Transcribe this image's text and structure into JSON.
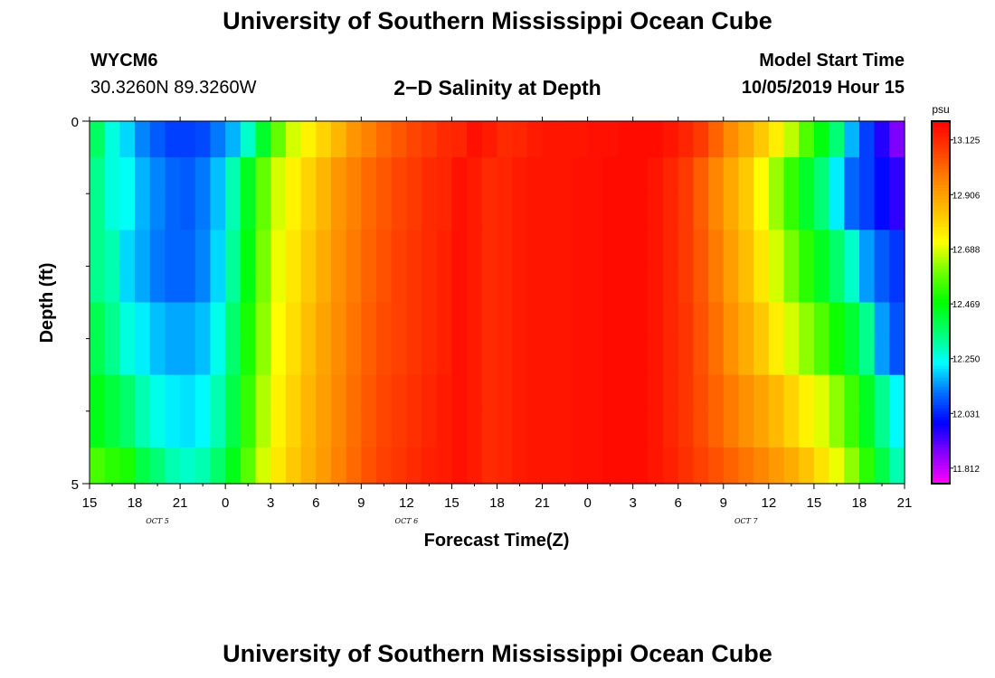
{
  "header": {
    "title": "University of Southern Mississippi Ocean Cube",
    "station_id": "WYCM6",
    "station_coords": "30.3260N 89.3260W",
    "plot_title": "2−D Salinity at Depth",
    "model_start_label": "Model Start Time",
    "model_start_value": "10/05/2019 Hour 15"
  },
  "footer": {
    "title": "University of Southern Mississippi Ocean Cube"
  },
  "chart_data": {
    "type": "heatmap",
    "title": "2−D Salinity at Depth",
    "xlabel": "Forecast Time(Z)",
    "ylabel": "Depth (ft)",
    "x_tick_labels": [
      "15",
      "18",
      "21",
      "0",
      "3",
      "6",
      "9",
      "12",
      "15",
      "18",
      "21",
      "0",
      "3",
      "6",
      "9",
      "12",
      "15",
      "18",
      "21"
    ],
    "x_hours_start": 15,
    "x_hours_step": 3,
    "date_labels": [
      {
        "text": "OCT 5",
        "hour_offset": 4.5
      },
      {
        "text": "OCT 6",
        "hour_offset": 21
      },
      {
        "text": "OCT 7",
        "hour_offset": 43.5
      }
    ],
    "y_tick_labels": [
      "0",
      "5"
    ],
    "ylim": [
      0,
      5
    ],
    "y_minor_ticks": [
      1,
      2,
      3,
      4
    ],
    "colorbar": {
      "unit": "psu",
      "min": 11.75,
      "max": 13.2,
      "tick_labels": [
        "13.125",
        "12.906",
        "12.688",
        "12.469",
        "12.250",
        "12.031",
        "11.812"
      ],
      "colors": [
        "#ff00ff",
        "#8800ff",
        "#0000ff",
        "#0070ff",
        "#00ffff",
        "#00ff70",
        "#00ff00",
        "#70ff00",
        "#ffff00",
        "#ffc000",
        "#ff8800",
        "#ff4000",
        "#ff0000"
      ]
    },
    "depth_layers_ft": [
      0.25,
      0.75,
      1.25,
      1.75,
      2.25,
      2.75,
      3.25,
      3.75,
      4.25,
      4.75
    ],
    "time_hours": [
      0,
      1,
      2,
      3,
      4,
      5,
      6,
      7,
      8,
      9,
      10,
      11,
      12,
      13,
      14,
      15,
      16,
      17,
      18,
      19,
      20,
      21,
      22,
      23,
      24,
      25,
      26,
      27,
      28,
      29,
      30,
      31,
      32,
      33,
      34,
      35,
      36,
      37,
      38,
      39,
      40,
      41,
      42,
      43,
      44,
      45,
      46,
      47,
      48,
      49,
      50,
      51,
      52,
      53,
      54
    ],
    "salinity_psu": [
      [
        12.37,
        12.26,
        12.2,
        12.13,
        12.09,
        12.06,
        12.06,
        12.07,
        12.12,
        12.17,
        12.28,
        12.43,
        12.58,
        12.68,
        12.74,
        12.8,
        12.86,
        12.93,
        12.97,
        13.01,
        13.04,
        13.07,
        13.09,
        13.12,
        13.13,
        13.17,
        13.15,
        13.12,
        13.13,
        13.15,
        13.16,
        13.16,
        13.16,
        13.17,
        13.17,
        13.18,
        13.18,
        13.18,
        13.16,
        13.13,
        13.09,
        13.02,
        12.95,
        12.89,
        12.82,
        12.75,
        12.66,
        12.56,
        12.46,
        12.35,
        12.17,
        12.06,
        11.96,
        11.88,
        11.79
      ],
      [
        12.33,
        12.26,
        12.24,
        12.17,
        12.13,
        12.1,
        12.09,
        12.12,
        12.18,
        12.3,
        12.44,
        12.58,
        12.68,
        12.74,
        12.8,
        12.86,
        12.93,
        12.97,
        13.01,
        13.04,
        13.07,
        13.09,
        13.12,
        13.13,
        13.17,
        13.15,
        13.12,
        13.13,
        13.15,
        13.16,
        13.16,
        13.16,
        13.17,
        13.17,
        13.18,
        13.18,
        13.18,
        13.16,
        13.13,
        13.09,
        13.03,
        12.96,
        12.89,
        12.82,
        12.72,
        12.63,
        12.53,
        12.43,
        12.35,
        12.22,
        12.1,
        12.06,
        12.0,
        11.95,
        11.9
      ],
      [
        12.33,
        12.26,
        12.24,
        12.17,
        12.13,
        12.1,
        12.09,
        12.12,
        12.18,
        12.3,
        12.44,
        12.58,
        12.68,
        12.74,
        12.8,
        12.86,
        12.93,
        12.97,
        13.01,
        13.04,
        13.07,
        13.09,
        13.12,
        13.13,
        13.17,
        13.15,
        13.12,
        13.13,
        13.15,
        13.16,
        13.16,
        13.16,
        13.17,
        13.17,
        13.18,
        13.18,
        13.18,
        13.16,
        13.13,
        13.09,
        13.03,
        12.96,
        12.89,
        12.82,
        12.72,
        12.63,
        12.53,
        12.43,
        12.35,
        12.22,
        12.1,
        12.06,
        12.0,
        11.95,
        11.9
      ],
      [
        12.33,
        12.3,
        12.2,
        12.16,
        12.12,
        12.1,
        12.1,
        12.13,
        12.2,
        12.32,
        12.46,
        12.6,
        12.7,
        12.76,
        12.82,
        12.88,
        12.94,
        12.98,
        13.02,
        13.05,
        13.08,
        13.1,
        13.12,
        13.14,
        13.17,
        13.15,
        13.12,
        13.13,
        13.15,
        13.16,
        13.16,
        13.16,
        13.17,
        13.17,
        13.18,
        13.18,
        13.18,
        13.16,
        13.13,
        13.09,
        13.04,
        12.98,
        12.91,
        12.84,
        12.76,
        12.68,
        12.6,
        12.52,
        12.44,
        12.36,
        12.28,
        12.15,
        12.09,
        12.05,
        12.01
      ],
      [
        12.33,
        12.3,
        12.2,
        12.16,
        12.12,
        12.1,
        12.1,
        12.13,
        12.2,
        12.32,
        12.46,
        12.6,
        12.7,
        12.76,
        12.82,
        12.88,
        12.94,
        12.98,
        13.02,
        13.05,
        13.08,
        13.1,
        13.12,
        13.14,
        13.17,
        13.15,
        13.12,
        13.13,
        13.15,
        13.16,
        13.16,
        13.16,
        13.17,
        13.17,
        13.18,
        13.18,
        13.18,
        13.16,
        13.13,
        13.09,
        13.04,
        12.98,
        12.91,
        12.84,
        12.76,
        12.68,
        12.6,
        12.52,
        12.44,
        12.36,
        12.28,
        12.15,
        12.09,
        12.05,
        12.01
      ],
      [
        12.39,
        12.33,
        12.26,
        12.22,
        12.18,
        12.16,
        12.16,
        12.18,
        12.25,
        12.36,
        12.5,
        12.62,
        12.72,
        12.78,
        12.84,
        12.9,
        12.95,
        12.99,
        13.03,
        13.06,
        13.08,
        13.1,
        13.12,
        13.14,
        13.17,
        13.15,
        13.12,
        13.13,
        13.15,
        13.16,
        13.16,
        13.16,
        13.17,
        13.17,
        13.18,
        13.18,
        13.18,
        13.16,
        13.13,
        13.1,
        13.05,
        13.0,
        12.94,
        12.88,
        12.82,
        12.75,
        12.68,
        12.62,
        12.56,
        12.49,
        12.42,
        12.33,
        12.15,
        12.08,
        12.04
      ],
      [
        12.39,
        12.33,
        12.26,
        12.22,
        12.18,
        12.16,
        12.16,
        12.18,
        12.25,
        12.36,
        12.5,
        12.62,
        12.72,
        12.78,
        12.84,
        12.9,
        12.95,
        12.99,
        13.03,
        13.06,
        13.08,
        13.1,
        13.12,
        13.14,
        13.17,
        13.15,
        13.12,
        13.13,
        13.15,
        13.16,
        13.16,
        13.16,
        13.17,
        13.17,
        13.18,
        13.18,
        13.18,
        13.16,
        13.13,
        13.1,
        13.05,
        13.0,
        12.94,
        12.88,
        12.82,
        12.75,
        12.68,
        12.62,
        12.56,
        12.49,
        12.42,
        12.33,
        12.15,
        12.08,
        12.04
      ],
      [
        12.45,
        12.41,
        12.36,
        12.3,
        12.25,
        12.22,
        12.21,
        12.23,
        12.3,
        12.4,
        12.53,
        12.65,
        12.74,
        12.8,
        12.86,
        12.91,
        12.96,
        13.0,
        13.04,
        13.07,
        13.09,
        13.11,
        13.13,
        13.15,
        13.17,
        13.15,
        13.12,
        13.13,
        13.15,
        13.16,
        13.16,
        13.16,
        13.17,
        13.17,
        13.18,
        13.18,
        13.18,
        13.16,
        13.13,
        13.1,
        13.06,
        13.02,
        12.98,
        12.94,
        12.9,
        12.85,
        12.8,
        12.74,
        12.69,
        12.62,
        12.54,
        12.44,
        12.33,
        12.23,
        12.17
      ],
      [
        12.45,
        12.41,
        12.36,
        12.3,
        12.25,
        12.22,
        12.21,
        12.23,
        12.3,
        12.4,
        12.53,
        12.65,
        12.74,
        12.8,
        12.86,
        12.91,
        12.96,
        13.0,
        13.04,
        13.07,
        13.09,
        13.11,
        13.13,
        13.15,
        13.17,
        13.15,
        13.12,
        13.13,
        13.15,
        13.16,
        13.16,
        13.16,
        13.17,
        13.17,
        13.18,
        13.18,
        13.18,
        13.16,
        13.13,
        13.1,
        13.06,
        13.02,
        12.98,
        12.94,
        12.9,
        12.85,
        12.8,
        12.74,
        12.69,
        12.62,
        12.54,
        12.44,
        12.33,
        12.23,
        12.17
      ],
      [
        12.55,
        12.52,
        12.5,
        12.4,
        12.35,
        12.3,
        12.28,
        12.3,
        12.36,
        12.45,
        12.57,
        12.68,
        12.76,
        12.82,
        12.87,
        12.92,
        12.97,
        13.01,
        13.05,
        13.08,
        13.1,
        13.12,
        13.14,
        13.15,
        13.17,
        13.15,
        13.12,
        13.13,
        13.15,
        13.16,
        13.16,
        13.16,
        13.17,
        13.17,
        13.18,
        13.18,
        13.18,
        13.16,
        13.14,
        13.11,
        13.08,
        13.05,
        13.02,
        12.99,
        12.96,
        12.92,
        12.88,
        12.83,
        12.77,
        12.7,
        12.62,
        12.52,
        12.4,
        12.3,
        12.24
      ]
    ]
  }
}
